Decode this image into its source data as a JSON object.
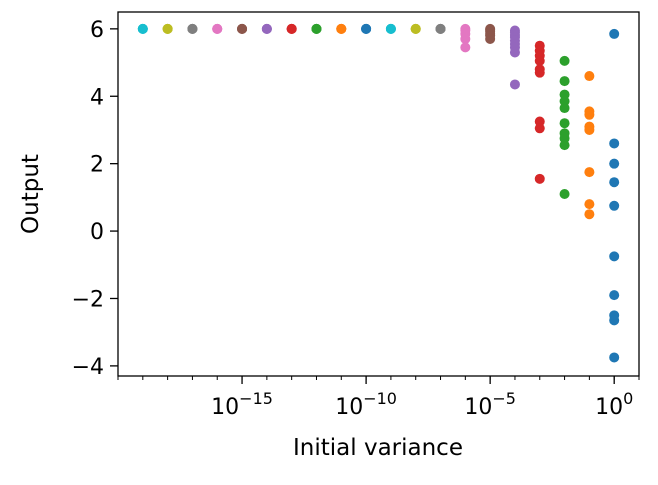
{
  "chart_data": {
    "type": "scatter",
    "title": "",
    "xlabel": "Initial variance",
    "ylabel": "Output",
    "xscale": "log",
    "xlim": [
      1e-20,
      10.0
    ],
    "ylim": [
      -4.3,
      6.5
    ],
    "grid": false,
    "legend": "none",
    "x_tick_labels": [
      {
        "value": 1e-15,
        "base": "10",
        "exp": "−15"
      },
      {
        "value": 1e-10,
        "base": "10",
        "exp": "−10"
      },
      {
        "value": 1e-05,
        "base": "10",
        "exp": "−5"
      },
      {
        "value": 1,
        "base": "10",
        "exp": "0"
      }
    ],
    "y_tick_labels": [
      {
        "value": -4,
        "label": "−4"
      },
      {
        "value": -2,
        "label": "−2"
      },
      {
        "value": 0,
        "label": "0"
      },
      {
        "value": 2,
        "label": "2"
      },
      {
        "value": 4,
        "label": "4"
      },
      {
        "value": 6,
        "label": "6"
      }
    ],
    "series": [
      {
        "x": 1e-19,
        "color": "#17becf",
        "values": [
          6.0,
          6.0,
          6.0
        ]
      },
      {
        "x": 1e-18,
        "color": "#bcbd22",
        "values": [
          6.0,
          6.0,
          6.0
        ]
      },
      {
        "x": 1e-17,
        "color": "#7f7f7f",
        "values": [
          6.0,
          6.0,
          6.0
        ]
      },
      {
        "x": 1e-16,
        "color": "#e377c2",
        "values": [
          6.0,
          6.0,
          6.0
        ]
      },
      {
        "x": 1e-15,
        "color": "#8c564b",
        "values": [
          6.0,
          6.0,
          6.0
        ]
      },
      {
        "x": 1e-14,
        "color": "#9467bd",
        "values": [
          6.0,
          6.0,
          6.0
        ]
      },
      {
        "x": 1e-13,
        "color": "#d62728",
        "values": [
          6.0,
          6.0,
          6.0
        ]
      },
      {
        "x": 1e-12,
        "color": "#2ca02c",
        "values": [
          6.0,
          6.0,
          6.0
        ]
      },
      {
        "x": 1e-11,
        "color": "#ff7f0e",
        "values": [
          6.0,
          6.0,
          6.0
        ]
      },
      {
        "x": 1e-10,
        "color": "#1f77b4",
        "values": [
          6.0,
          6.0,
          6.0
        ]
      },
      {
        "x": 1e-09,
        "color": "#17becf",
        "values": [
          6.0,
          6.0,
          6.0
        ]
      },
      {
        "x": 1e-08,
        "color": "#bcbd22",
        "values": [
          6.0,
          6.0,
          6.0
        ]
      },
      {
        "x": 1e-07,
        "color": "#7f7f7f",
        "values": [
          6.0,
          6.0,
          6.0
        ]
      },
      {
        "x": 1e-06,
        "color": "#e377c2",
        "values": [
          6.0,
          5.95,
          5.85,
          5.7,
          5.45
        ]
      },
      {
        "x": 1e-05,
        "color": "#8c564b",
        "values": [
          6.0,
          5.97,
          5.92,
          5.85,
          5.8,
          5.7
        ]
      },
      {
        "x": 0.0001,
        "color": "#9467bd",
        "values": [
          5.95,
          5.9,
          5.82,
          5.75,
          5.65,
          5.55,
          5.45,
          5.3,
          4.35
        ]
      },
      {
        "x": 0.001,
        "color": "#d62728",
        "values": [
          5.5,
          5.35,
          5.2,
          5.05,
          4.8,
          4.7,
          3.25,
          3.05,
          1.55
        ]
      },
      {
        "x": 0.01,
        "color": "#2ca02c",
        "values": [
          5.05,
          4.45,
          4.05,
          3.85,
          3.65,
          3.2,
          2.9,
          2.75,
          2.55,
          1.1
        ]
      },
      {
        "x": 0.1,
        "color": "#ff7f0e",
        "values": [
          4.6,
          3.55,
          3.45,
          3.1,
          3.0,
          1.75,
          0.8,
          0.5
        ]
      },
      {
        "x": 1,
        "color": "#1f77b4",
        "values": [
          5.85,
          2.6,
          2.0,
          1.45,
          0.75,
          -0.75,
          -1.9,
          -2.5,
          -2.65,
          -3.75
        ]
      }
    ]
  }
}
